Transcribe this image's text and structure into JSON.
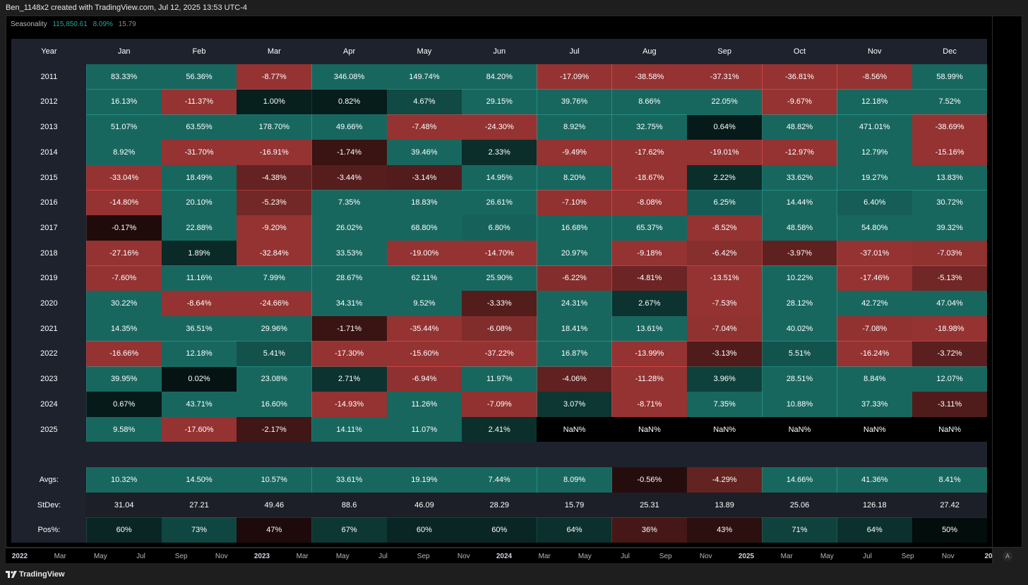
{
  "header": {
    "caption": "Ben_1148x2 created with TradingView.com, Jul 12, 2025 13:53 UTC-4"
  },
  "legend": {
    "name": "Seasonality",
    "v1": "115,850.61",
    "v2": "8.09%",
    "v3": "15.79"
  },
  "footer": {
    "logo_text": "TradingView"
  },
  "axis_button": "A",
  "time_axis": [
    {
      "label": "2022",
      "bold": true
    },
    {
      "label": "Mar"
    },
    {
      "label": "May"
    },
    {
      "label": "Jul"
    },
    {
      "label": "Sep"
    },
    {
      "label": "Nov"
    },
    {
      "label": "2023",
      "bold": true
    },
    {
      "label": "Mar"
    },
    {
      "label": "May"
    },
    {
      "label": "Jul"
    },
    {
      "label": "Sep"
    },
    {
      "label": "Nov"
    },
    {
      "label": "2024",
      "bold": true
    },
    {
      "label": "Mar"
    },
    {
      "label": "May"
    },
    {
      "label": "Jul"
    },
    {
      "label": "Sep"
    },
    {
      "label": "Nov"
    },
    {
      "label": "2025",
      "bold": true
    },
    {
      "label": "Mar"
    },
    {
      "label": "May"
    },
    {
      "label": "Jul"
    },
    {
      "label": "Sep"
    },
    {
      "label": "Nov"
    },
    {
      "label": "20",
      "bold": true
    }
  ],
  "colors": {
    "positive": "#26a69a",
    "negative": "#ef5350",
    "background": "#000000",
    "header_bg": "#1e222d",
    "stdev_bg": "#1c1f27"
  },
  "chart_data": {
    "type": "table",
    "title": "Seasonality",
    "columns": [
      "Year",
      "Jan",
      "Feb",
      "Mar",
      "Apr",
      "May",
      "Jun",
      "Jul",
      "Aug",
      "Sep",
      "Oct",
      "Nov",
      "Dec"
    ],
    "rows": [
      {
        "label": "2011",
        "values": [
          "83.33%",
          "56.36%",
          "-8.77%",
          "346.08%",
          "149.74%",
          "84.20%",
          "-17.09%",
          "-38.58%",
          "-37.31%",
          "-36.81%",
          "-8.56%",
          "58.99%"
        ]
      },
      {
        "label": "2012",
        "values": [
          "16.13%",
          "-11.37%",
          "1.00%",
          "0.82%",
          "4.67%",
          "29.15%",
          "39.76%",
          "8.66%",
          "22.05%",
          "-9.67%",
          "12.18%",
          "7.52%"
        ]
      },
      {
        "label": "2013",
        "values": [
          "51.07%",
          "63.55%",
          "178.70%",
          "49.66%",
          "-7.48%",
          "-24.30%",
          "8.92%",
          "32.75%",
          "0.64%",
          "48.82%",
          "471.01%",
          "-38.69%"
        ]
      },
      {
        "label": "2014",
        "values": [
          "8.92%",
          "-31.70%",
          "-16.91%",
          "-1.74%",
          "39.46%",
          "2.33%",
          "-9.49%",
          "-17.62%",
          "-19.01%",
          "-12.97%",
          "12.79%",
          "-15.16%"
        ]
      },
      {
        "label": "2015",
        "values": [
          "-33.04%",
          "18.49%",
          "-4.38%",
          "-3.44%",
          "-3.14%",
          "14.95%",
          "8.20%",
          "-18.67%",
          "2.22%",
          "33.62%",
          "19.27%",
          "13.83%"
        ]
      },
      {
        "label": "2016",
        "values": [
          "-14.80%",
          "20.10%",
          "-5.23%",
          "7.35%",
          "18.83%",
          "26.61%",
          "-7.10%",
          "-8.08%",
          "6.25%",
          "14.44%",
          "6.40%",
          "30.72%"
        ]
      },
      {
        "label": "2017",
        "values": [
          "-0.17%",
          "22.88%",
          "-9.20%",
          "26.02%",
          "68.80%",
          "6.80%",
          "16.68%",
          "65.37%",
          "-8.52%",
          "48.58%",
          "54.80%",
          "39.32%"
        ]
      },
      {
        "label": "2018",
        "values": [
          "-27.16%",
          "1.89%",
          "-32.84%",
          "33.53%",
          "-19.00%",
          "-14.70%",
          "20.97%",
          "-9.18%",
          "-6.42%",
          "-3.97%",
          "-37.01%",
          "-7.03%"
        ]
      },
      {
        "label": "2019",
        "values": [
          "-7.60%",
          "11.16%",
          "7.99%",
          "28.67%",
          "62.11%",
          "25.90%",
          "-6.22%",
          "-4.81%",
          "-13.51%",
          "10.22%",
          "-17.46%",
          "-5.13%"
        ]
      },
      {
        "label": "2020",
        "values": [
          "30.22%",
          "-8.64%",
          "-24.66%",
          "34.31%",
          "9.52%",
          "-3.33%",
          "24.31%",
          "2.67%",
          "-7.53%",
          "28.12%",
          "42.72%",
          "47.04%"
        ]
      },
      {
        "label": "2021",
        "values": [
          "14.35%",
          "36.51%",
          "29.96%",
          "-1.71%",
          "-35.44%",
          "-6.08%",
          "18.41%",
          "13.61%",
          "-7.04%",
          "40.02%",
          "-7.08%",
          "-18.98%"
        ]
      },
      {
        "label": "2022",
        "values": [
          "-16.66%",
          "12.18%",
          "5.41%",
          "-17.30%",
          "-15.60%",
          "-37.22%",
          "16.87%",
          "-13.99%",
          "-3.13%",
          "5.51%",
          "-16.24%",
          "-3.72%"
        ]
      },
      {
        "label": "2023",
        "values": [
          "39.95%",
          "0.02%",
          "23.08%",
          "2.71%",
          "-6.94%",
          "11.97%",
          "-4.06%",
          "-11.28%",
          "3.96%",
          "28.51%",
          "8.84%",
          "12.07%"
        ]
      },
      {
        "label": "2024",
        "values": [
          "0.67%",
          "43.71%",
          "16.60%",
          "-14.93%",
          "11.26%",
          "-7.09%",
          "3.07%",
          "-8.71%",
          "7.35%",
          "10.88%",
          "37.33%",
          "-3.11%"
        ]
      },
      {
        "label": "2025",
        "values": [
          "9.58%",
          "-17.60%",
          "-2.17%",
          "14.11%",
          "11.07%",
          "2.41%",
          "NaN%",
          "NaN%",
          "NaN%",
          "NaN%",
          "NaN%",
          "NaN%"
        ]
      }
    ],
    "summary": [
      {
        "label": "Avgs:",
        "kind": "avg",
        "values": [
          "10.32%",
          "14.50%",
          "10.57%",
          "33.61%",
          "19.19%",
          "7.44%",
          "8.09%",
          "-0.56%",
          "-4.29%",
          "14.66%",
          "41.36%",
          "8.41%"
        ]
      },
      {
        "label": "StDev:",
        "kind": "stdev",
        "values": [
          "31.04",
          "27.21",
          "49.46",
          "88.6",
          "46.09",
          "28.29",
          "15.79",
          "25.31",
          "13.89",
          "25.06",
          "126.18",
          "27.42"
        ]
      },
      {
        "label": "Pos%:",
        "kind": "pos",
        "values": [
          "60%",
          "73%",
          "47%",
          "67%",
          "60%",
          "60%",
          "64%",
          "36%",
          "43%",
          "71%",
          "64%",
          "50%"
        ]
      }
    ]
  }
}
